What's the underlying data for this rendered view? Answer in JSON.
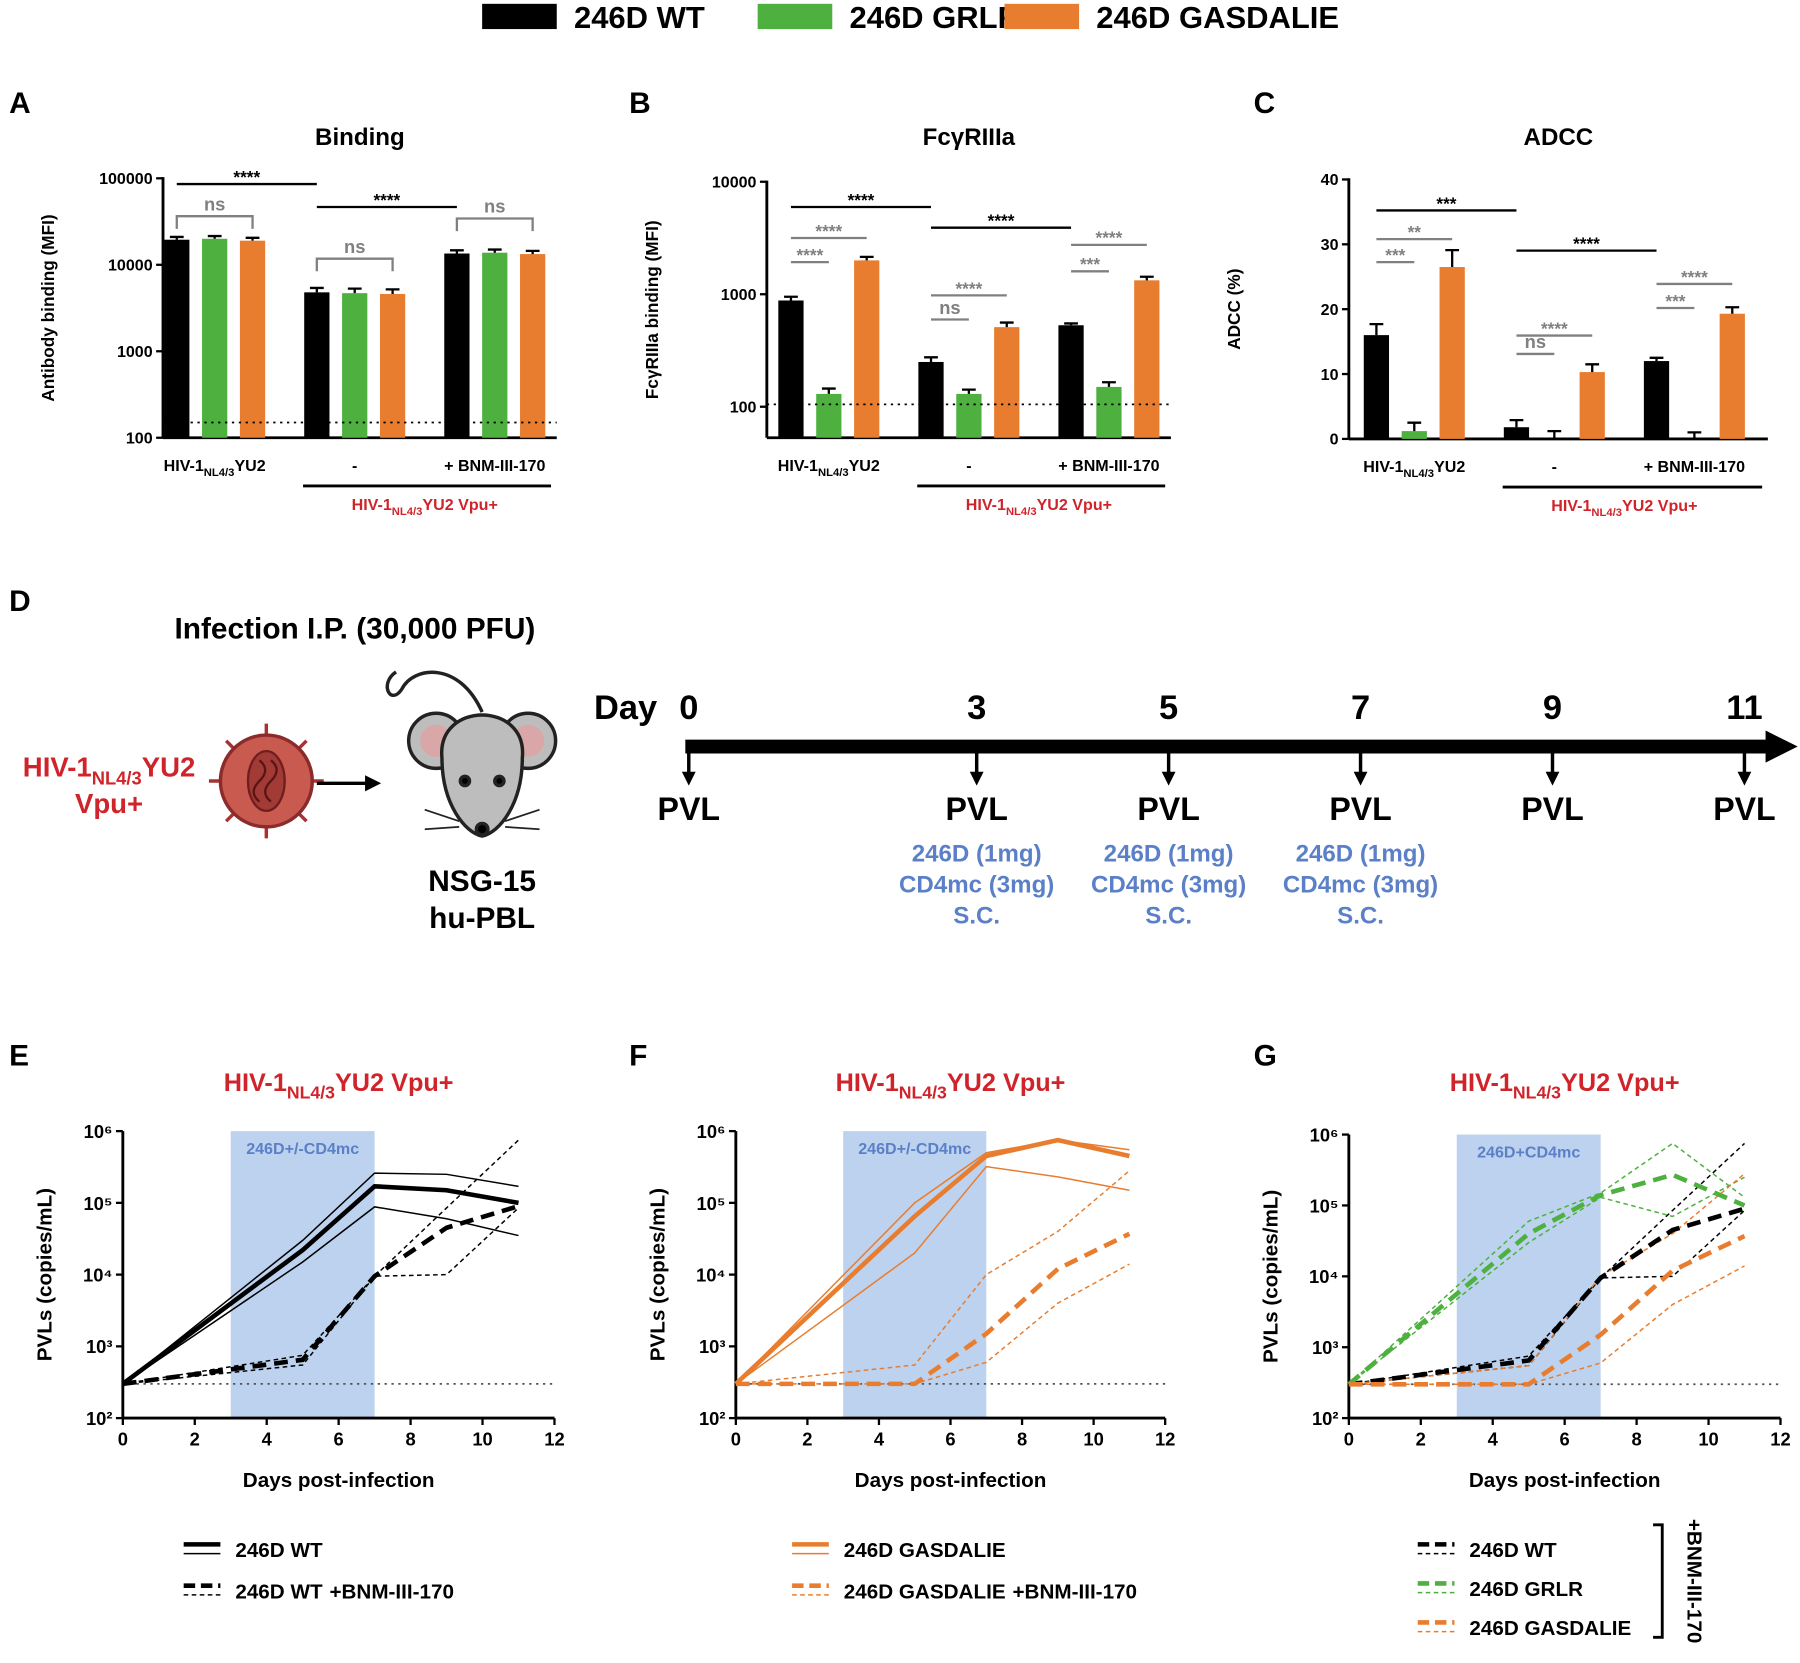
{
  "legend": [
    {
      "name": "246D WT",
      "color": "#000000"
    },
    {
      "name": "246D GRLR",
      "color": "#4db03f"
    },
    {
      "name": "246D GASDALIE",
      "color": "#e87d2f"
    }
  ],
  "chart_data": [
    {
      "type": "bar",
      "panel": "A",
      "title": "Binding",
      "y_label": "Antibody binding (MFI)",
      "log": true,
      "ylim": [
        100,
        100000
      ],
      "yticks": [
        100,
        1000,
        10000,
        100000
      ],
      "threshold": 150,
      "categories": [
        [
          "HIV-1",
          "NL4/3",
          "YU2"
        ],
        "-",
        "+ BNM-III-170"
      ],
      "group_label": [
        "HIV-1",
        "NL4/3",
        "YU2 Vpu+"
      ],
      "series": [
        {
          "values": [
            19500,
            4800,
            13500
          ],
          "errors": [
            1500,
            600,
            1200
          ]
        },
        {
          "values": [
            20000,
            4700,
            13800
          ],
          "errors": [
            1500,
            600,
            1200
          ]
        },
        {
          "values": [
            19000,
            4600,
            13300
          ],
          "errors": [
            1500,
            600,
            1200
          ]
        }
      ],
      "significance": [
        "****",
        "ns",
        "****",
        "ns",
        "ns"
      ]
    },
    {
      "type": "bar",
      "panel": "B",
      "title": "FcγRIIIa",
      "y_label": "FcγRIIIa binding (MFI)",
      "log": true,
      "ylim": [
        53,
        10000
      ],
      "yticks": [
        100,
        1000,
        10000
      ],
      "threshold": 105,
      "categories": [
        [
          "HIV-1",
          "NL4/3",
          "YU2"
        ],
        "-",
        "+ BNM-III-170"
      ],
      "group_label": [
        "HIV-1",
        "NL4/3",
        "YU2 Vpu+"
      ],
      "series": [
        {
          "values": [
            880,
            250,
            530
          ],
          "errors": [
            70,
            25,
            20
          ]
        },
        {
          "values": [
            130,
            130,
            150
          ],
          "errors": [
            15,
            12,
            15
          ]
        },
        {
          "values": [
            2000,
            510,
            1330
          ],
          "errors": [
            150,
            50,
            100
          ]
        }
      ],
      "significance": [
        "****",
        "****",
        "****",
        "****",
        "****",
        "ns",
        "****",
        "***"
      ]
    },
    {
      "type": "bar",
      "panel": "C",
      "title": "ADCC",
      "y_label": "ADCC (%)",
      "log": false,
      "ylim": [
        0,
        40
      ],
      "yticks": [
        0,
        10,
        20,
        30,
        40
      ],
      "categories": [
        [
          "HIV-1",
          "NL4/3",
          "YU2"
        ],
        "-",
        "+ BNM-III-170"
      ],
      "group_label": [
        "HIV-1",
        "NL4/3",
        "YU2 Vpu+"
      ],
      "series": [
        {
          "values": [
            16,
            1.8,
            12
          ],
          "errors": [
            1.7,
            1.1,
            0.5
          ]
        },
        {
          "values": [
            1.2,
            0,
            0
          ],
          "errors": [
            1.3,
            1.2,
            1.0
          ]
        },
        {
          "values": [
            26.5,
            10.3,
            19.3
          ],
          "errors": [
            2.6,
            1.2,
            1
          ]
        }
      ],
      "significance": [
        "***",
        "**",
        "***",
        "****",
        "****",
        "ns",
        "****",
        "***"
      ]
    },
    {
      "type": "line",
      "panel": "E",
      "title": [
        "HIV-1",
        "NL4/3",
        "YU2 Vpu+"
      ],
      "x_label": "Days post-infection",
      "y_label": "PVLs (copies/mL)",
      "log": true,
      "xlim": [
        0,
        12
      ],
      "xticks": [
        0,
        2,
        4,
        6,
        8,
        10,
        12
      ],
      "ylim": [
        100,
        1000000
      ],
      "yticks": [
        {
          "value": 100,
          "label": "10²"
        },
        {
          "value": 1000,
          "label": "10³"
        },
        {
          "value": 10000,
          "label": "10⁴"
        },
        {
          "value": 100000,
          "label": "10⁵"
        },
        {
          "value": 1000000,
          "label": "10⁶"
        }
      ],
      "threshold": 300,
      "band": [
        3,
        7
      ],
      "band_label": "246D+/-CD4mc",
      "x": [
        0,
        5,
        7,
        9,
        11
      ],
      "series": [
        {
          "name": "246D WT",
          "color": "#000000",
          "dash": false,
          "values": [
            300,
            22000,
            170000,
            150000,
            100000
          ],
          "individuals": [
            [
              300,
              30000,
              260000,
              250000,
              170000
            ],
            [
              300,
              15000,
              88000,
              60000,
              35000
            ]
          ]
        },
        {
          "name": "246D WT",
          "suffix": "+BNM-III-170",
          "color": "#000000",
          "dash": true,
          "values": [
            300,
            650,
            9500,
            45000,
            90000
          ],
          "individuals": [
            [
              300,
              750,
              9500,
              85000,
              750000
            ],
            [
              300,
              550,
              9500,
              10000,
              85000
            ]
          ]
        }
      ]
    },
    {
      "type": "line",
      "panel": "F",
      "title": [
        "HIV-1",
        "NL4/3",
        "YU2 Vpu+"
      ],
      "x_label": "Days post-infection",
      "y_label": "PVLs (copies/mL)",
      "log": true,
      "xlim": [
        0,
        12
      ],
      "xticks": [
        0,
        2,
        4,
        6,
        8,
        10,
        12
      ],
      "ylim": [
        100,
        1000000
      ],
      "yticks": [
        {
          "value": 100,
          "label": "10²"
        },
        {
          "value": 1000,
          "label": "10³"
        },
        {
          "value": 10000,
          "label": "10⁴"
        },
        {
          "value": 100000,
          "label": "10⁵"
        },
        {
          "value": 1000000,
          "label": "10⁶"
        }
      ],
      "threshold": 300,
      "band": [
        3,
        7
      ],
      "band_label": "246D+/-CD4mc",
      "x": [
        0,
        5,
        7,
        9,
        11
      ],
      "series": [
        {
          "name": "246D GASDALIE",
          "color": "#e87d2f",
          "dash": false,
          "values": [
            300,
            65000,
            450000,
            750000,
            450000
          ],
          "individuals": [
            [
              300,
              100000,
              500000,
              750000,
              550000
            ],
            [
              300,
              20000,
              320000,
              230000,
              150000
            ]
          ]
        },
        {
          "name": "246D GASDALIE",
          "suffix": "+BNM-III-170",
          "color": "#e87d2f",
          "dash": true,
          "values": [
            300,
            300,
            1500,
            12000,
            37000
          ],
          "individuals": [
            [
              300,
              550,
              10000,
              40000,
              280000
            ],
            [
              300,
              300,
              600,
              4000,
              14000
            ]
          ]
        }
      ]
    },
    {
      "type": "line",
      "panel": "G",
      "title": [
        "HIV-1",
        "NL4/3",
        "YU2 Vpu+"
      ],
      "x_label": "Days post-infection",
      "y_label": "PVLs (copies/mL)",
      "log": true,
      "xlim": [
        0,
        12
      ],
      "xticks": [
        0,
        2,
        4,
        6,
        8,
        10,
        12
      ],
      "ylim": [
        100,
        1000000
      ],
      "yticks": [
        {
          "value": 100,
          "label": "10²"
        },
        {
          "value": 1000,
          "label": "10³"
        },
        {
          "value": 10000,
          "label": "10⁴"
        },
        {
          "value": 100000,
          "label": "10⁵"
        },
        {
          "value": 1000000,
          "label": "10⁶"
        }
      ],
      "threshold": 300,
      "band": [
        3,
        7
      ],
      "band_label": "246D+CD4mc",
      "x": [
        0,
        5,
        7,
        9,
        11
      ],
      "bracket_label": "+BNM-III-170",
      "series": [
        {
          "name": "246D WT",
          "color": "#000000",
          "dash": true,
          "values": [
            300,
            650,
            9500,
            45000,
            90000
          ],
          "individuals": [
            [
              300,
              750,
              9500,
              85000,
              750000
            ],
            [
              300,
              550,
              9500,
              10000,
              85000
            ]
          ]
        },
        {
          "name": "246D GRLR",
          "color": "#4db03f",
          "dash": true,
          "values": [
            300,
            40000,
            140000,
            270000,
            100000
          ],
          "individuals": [
            [
              300,
              60000,
              150000,
              750000,
              130000
            ],
            [
              300,
              30000,
              130000,
              70000,
              250000
            ]
          ]
        },
        {
          "name": "246D GASDALIE",
          "color": "#e87d2f",
          "dash": true,
          "values": [
            300,
            300,
            1500,
            12000,
            37000
          ],
          "individuals": [
            [
              300,
              550,
              10000,
              40000,
              280000
            ],
            [
              300,
              300,
              600,
              4000,
              14000
            ]
          ]
        }
      ]
    }
  ],
  "timeline": {
    "panel": "D",
    "title": "Infection I.P. (30,000 PFU)",
    "virus": [
      "HIV-1",
      "NL4/3",
      "YU2"
    ],
    "virus_line2": "Vpu+",
    "host": [
      "NSG-15",
      "hu-PBL"
    ],
    "axis_label": "Day",
    "timepoints": [
      {
        "day": 0,
        "label": "PVL"
      },
      {
        "day": 3,
        "label": "PVL",
        "treatment": [
          "246D (1mg)",
          "CD4mc (3mg)",
          "S.C."
        ]
      },
      {
        "day": 5,
        "label": "PVL",
        "treatment": [
          "246D (1mg)",
          "CD4mc (3mg)",
          "S.C."
        ]
      },
      {
        "day": 7,
        "label": "PVL",
        "treatment": [
          "246D (1mg)",
          "CD4mc (3mg)",
          "S.C."
        ]
      },
      {
        "day": 9,
        "label": "PVL"
      },
      {
        "day": 11,
        "label": "PVL"
      }
    ]
  }
}
